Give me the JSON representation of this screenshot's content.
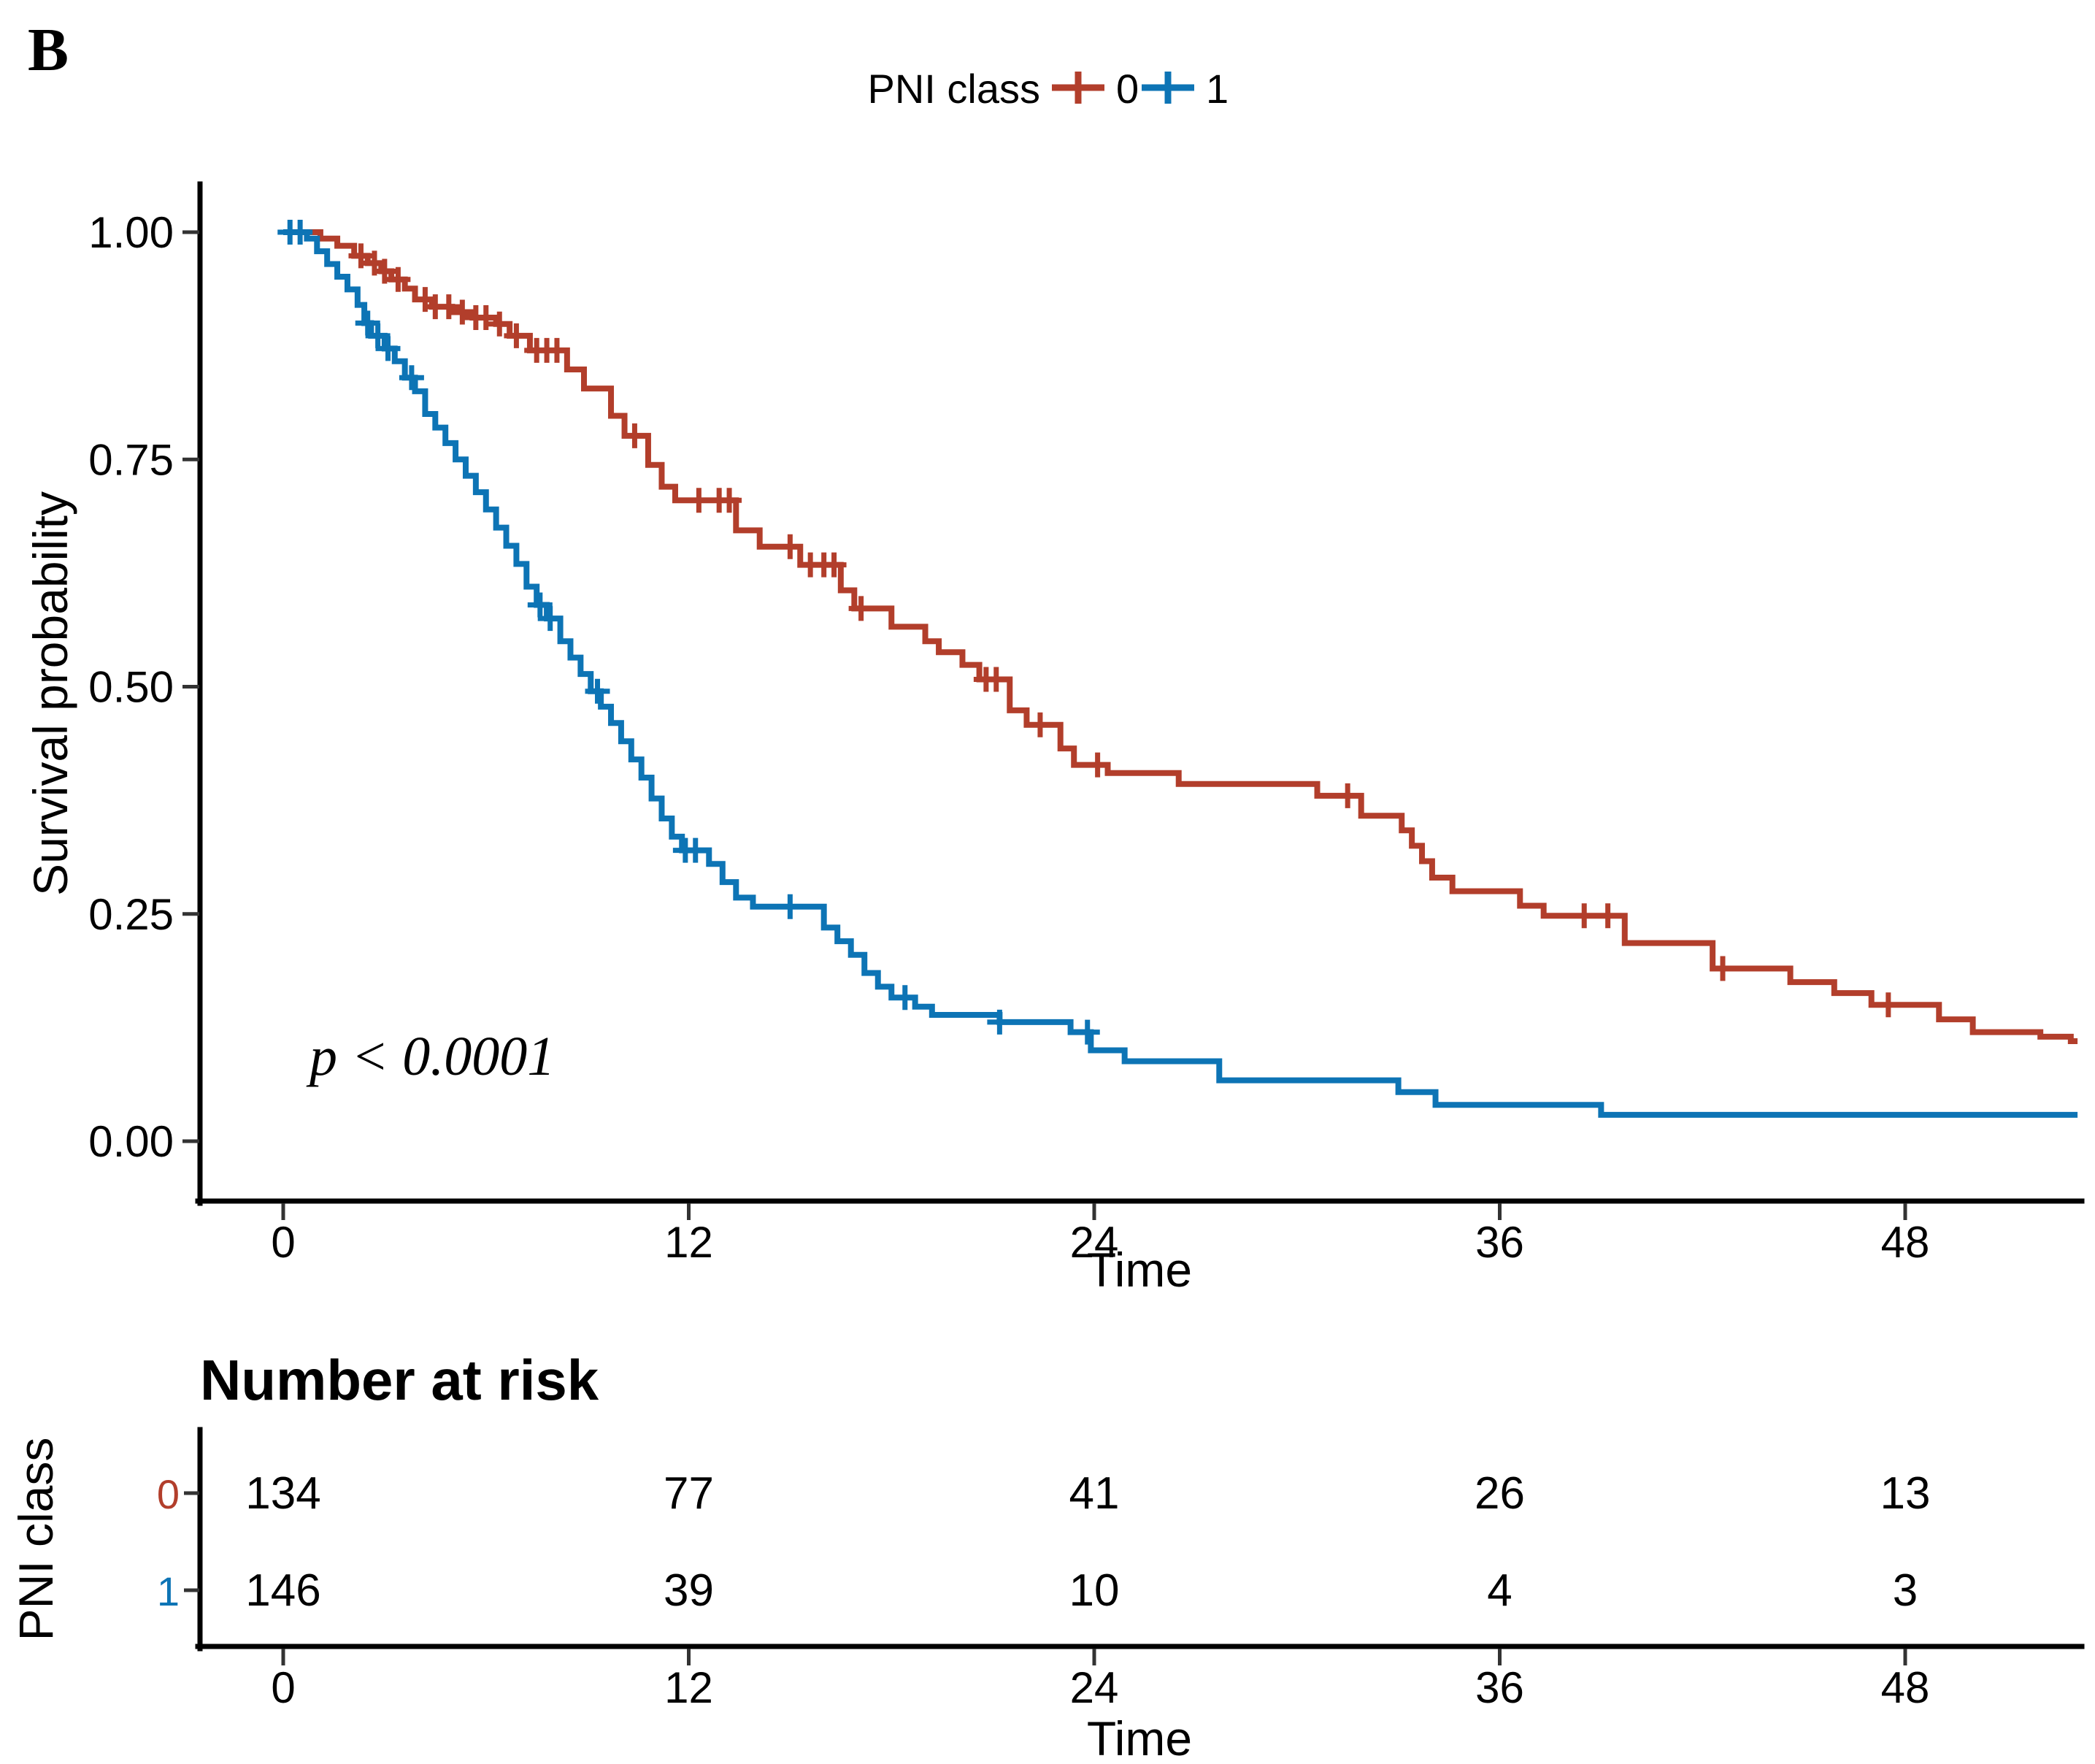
{
  "panel_label": "B",
  "legend": {
    "title": "PNI class",
    "items": [
      {
        "label": "0",
        "color": "#B23E2B"
      },
      {
        "label": "1",
        "color": "#0D74B5"
      }
    ]
  },
  "chart_data": {
    "type": "line",
    "subtype": "kaplan-meier-step",
    "title": "",
    "xlabel": "Time",
    "ylabel": "Survival probability",
    "pvalue": "p < 0.0001",
    "xlim": [
      0,
      53
    ],
    "ylim": [
      0,
      1
    ],
    "xticks": [
      0,
      12,
      24,
      36,
      48
    ],
    "yticks": [
      1.0,
      0.75,
      0.5,
      0.25,
      0.0
    ],
    "ytick_labels": [
      "1.00",
      "0.75",
      "0.50",
      "0.25",
      "0.00"
    ],
    "grid": false,
    "legend_position": "top",
    "series": [
      {
        "name": "0",
        "color": "#B23E2B",
        "end_time": 53.1,
        "steps": [
          [
            0,
            1.0
          ],
          [
            1.1,
            0.993
          ],
          [
            1.6,
            0.985
          ],
          [
            2.1,
            0.974
          ],
          [
            2.5,
            0.966
          ],
          [
            2.9,
            0.957
          ],
          [
            3.2,
            0.948
          ],
          [
            3.6,
            0.938
          ],
          [
            3.9,
            0.926
          ],
          [
            4.4,
            0.918
          ],
          [
            5.0,
            0.912
          ],
          [
            5.6,
            0.906
          ],
          [
            6.3,
            0.899
          ],
          [
            6.7,
            0.886
          ],
          [
            7.3,
            0.87
          ],
          [
            8.4,
            0.849
          ],
          [
            8.9,
            0.828
          ],
          [
            9.7,
            0.798
          ],
          [
            10.1,
            0.776
          ],
          [
            10.8,
            0.744
          ],
          [
            11.2,
            0.72
          ],
          [
            11.6,
            0.705
          ],
          [
            13.4,
            0.672
          ],
          [
            14.1,
            0.654
          ],
          [
            15.3,
            0.634
          ],
          [
            16.5,
            0.606
          ],
          [
            16.9,
            0.586
          ],
          [
            18.0,
            0.566
          ],
          [
            19.0,
            0.55
          ],
          [
            19.4,
            0.538
          ],
          [
            20.1,
            0.524
          ],
          [
            20.6,
            0.508
          ],
          [
            21.5,
            0.474
          ],
          [
            22.0,
            0.458
          ],
          [
            23.0,
            0.432
          ],
          [
            23.4,
            0.414
          ],
          [
            24.4,
            0.405
          ],
          [
            26.5,
            0.393
          ],
          [
            30.6,
            0.38
          ],
          [
            31.9,
            0.358
          ],
          [
            33.1,
            0.342
          ],
          [
            33.4,
            0.325
          ],
          [
            33.7,
            0.308
          ],
          [
            34.0,
            0.29
          ],
          [
            34.6,
            0.275
          ],
          [
            36.6,
            0.259
          ],
          [
            37.3,
            0.248
          ],
          [
            39.7,
            0.218
          ],
          [
            42.3,
            0.19
          ],
          [
            44.6,
            0.175
          ],
          [
            45.9,
            0.163
          ],
          [
            47.0,
            0.15
          ],
          [
            49.0,
            0.134
          ],
          [
            50.0,
            0.12
          ],
          [
            52.0,
            0.115
          ],
          [
            52.9,
            0.11
          ]
        ],
        "censor_times": [
          2.3,
          2.7,
          3.0,
          3.4,
          4.2,
          4.5,
          4.9,
          5.3,
          5.7,
          6.0,
          6.4,
          6.9,
          7.5,
          7.8,
          8.1,
          10.4,
          12.3,
          12.9,
          13.2,
          15.0,
          15.6,
          16.0,
          16.3,
          17.1,
          20.8,
          21.1,
          22.4,
          24.1,
          31.5,
          38.5,
          39.2,
          42.6,
          47.5
        ]
      },
      {
        "name": "1",
        "color": "#0D74B5",
        "end_time": 53.1,
        "steps": [
          [
            0,
            1.0
          ],
          [
            0.7,
            0.993
          ],
          [
            1.0,
            0.979
          ],
          [
            1.3,
            0.965
          ],
          [
            1.6,
            0.951
          ],
          [
            1.9,
            0.937
          ],
          [
            2.2,
            0.92
          ],
          [
            2.4,
            0.9
          ],
          [
            2.6,
            0.886
          ],
          [
            3.0,
            0.872
          ],
          [
            3.3,
            0.858
          ],
          [
            3.6,
            0.84
          ],
          [
            3.9,
            0.825
          ],
          [
            4.2,
            0.8
          ],
          [
            4.5,
            0.785
          ],
          [
            4.8,
            0.768
          ],
          [
            5.1,
            0.75
          ],
          [
            5.4,
            0.732
          ],
          [
            5.7,
            0.714
          ],
          [
            6.0,
            0.695
          ],
          [
            6.3,
            0.675
          ],
          [
            6.6,
            0.655
          ],
          [
            6.9,
            0.635
          ],
          [
            7.2,
            0.61
          ],
          [
            7.5,
            0.59
          ],
          [
            7.8,
            0.575
          ],
          [
            8.2,
            0.55
          ],
          [
            8.5,
            0.532
          ],
          [
            8.8,
            0.514
          ],
          [
            9.1,
            0.495
          ],
          [
            9.4,
            0.478
          ],
          [
            9.7,
            0.46
          ],
          [
            10.0,
            0.44
          ],
          [
            10.3,
            0.42
          ],
          [
            10.6,
            0.4
          ],
          [
            10.9,
            0.377
          ],
          [
            11.2,
            0.355
          ],
          [
            11.5,
            0.335
          ],
          [
            11.8,
            0.32
          ],
          [
            12.6,
            0.305
          ],
          [
            13.0,
            0.285
          ],
          [
            13.4,
            0.268
          ],
          [
            13.9,
            0.258
          ],
          [
            16.0,
            0.235
          ],
          [
            16.4,
            0.22
          ],
          [
            16.8,
            0.205
          ],
          [
            17.2,
            0.185
          ],
          [
            17.6,
            0.17
          ],
          [
            18.0,
            0.158
          ],
          [
            18.7,
            0.148
          ],
          [
            19.2,
            0.139
          ],
          [
            21.2,
            0.131
          ],
          [
            23.3,
            0.12
          ],
          [
            23.9,
            0.1
          ],
          [
            24.9,
            0.088
          ],
          [
            27.7,
            0.067
          ],
          [
            33.0,
            0.054
          ],
          [
            34.1,
            0.04
          ],
          [
            39.0,
            0.029
          ]
        ],
        "censor_times": [
          0.2,
          0.5,
          2.5,
          2.8,
          3.1,
          3.8,
          7.6,
          7.9,
          9.3,
          11.9,
          12.2,
          15.0,
          18.4,
          21.2,
          23.8
        ]
      }
    ]
  },
  "risk_table": {
    "title": "Number at risk",
    "group_label": "PNI class",
    "time_label": "Time",
    "times": [
      0,
      12,
      24,
      36,
      48
    ],
    "rows": [
      {
        "label": "0",
        "color": "#B23E2B",
        "counts": [
          "134",
          "77",
          "41",
          "26",
          "13"
        ]
      },
      {
        "label": "1",
        "color": "#0D74B5",
        "counts": [
          "146",
          "39",
          "10",
          "4",
          "3"
        ]
      }
    ]
  }
}
